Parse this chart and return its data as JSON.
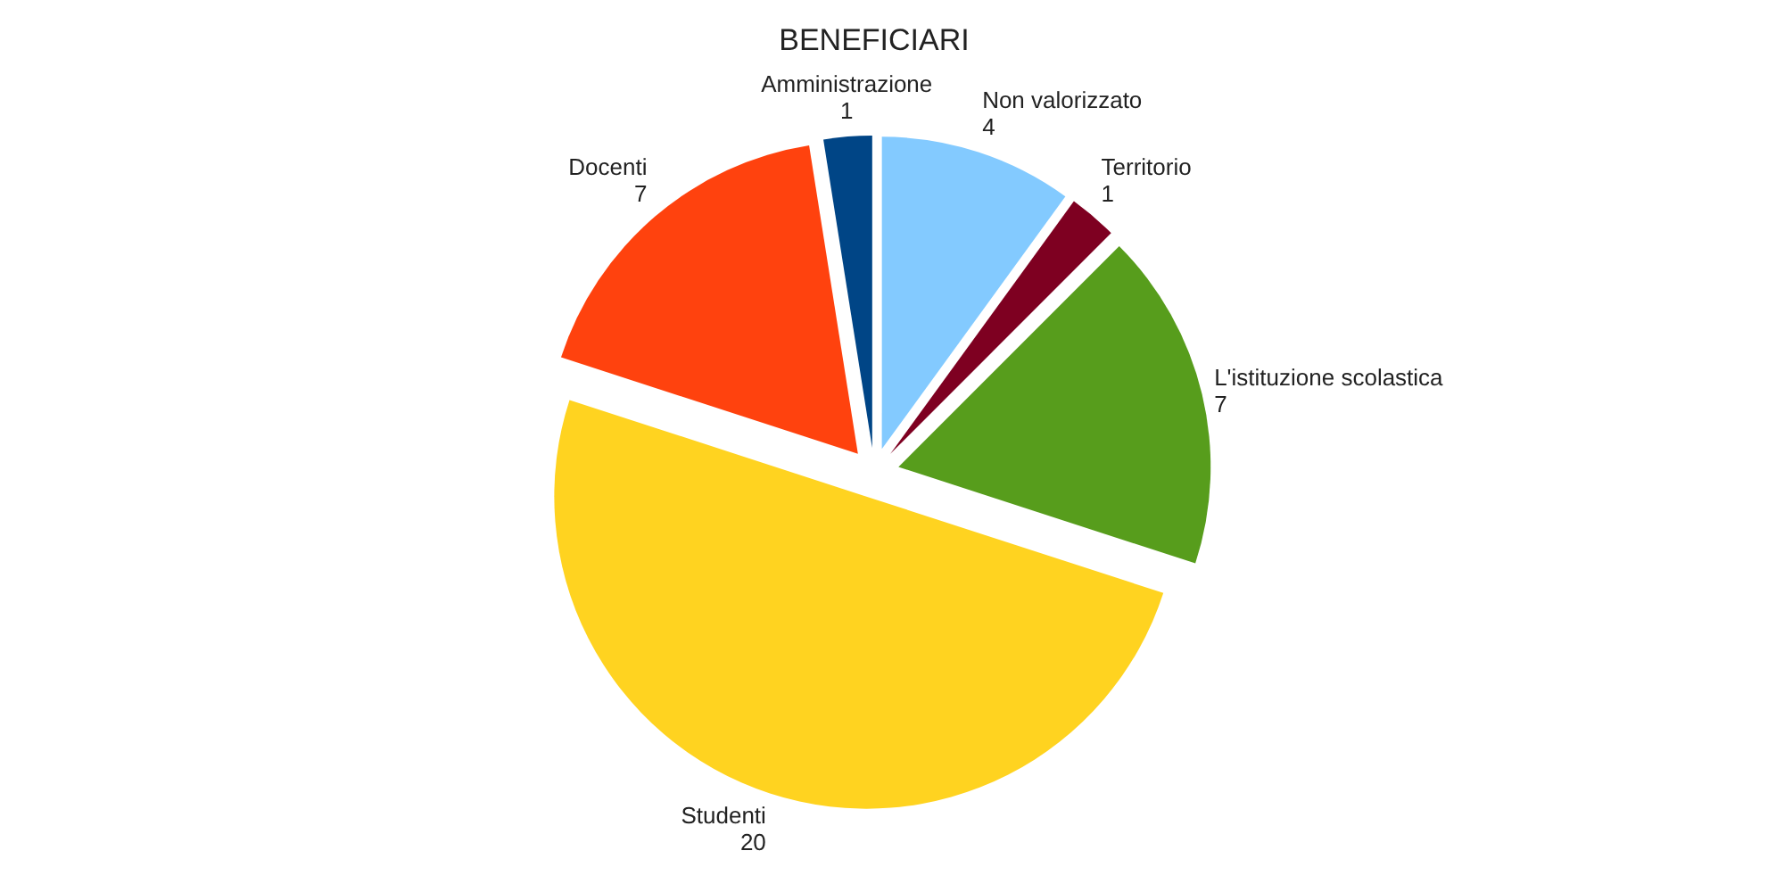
{
  "chart_data": {
    "type": "pie",
    "title": "BENEFICIARI",
    "categories": [
      "Non valorizzato",
      "Territorio",
      "L'istituzione scolastica",
      "Studenti",
      "Docenti",
      "Amministrazione"
    ],
    "values": [
      4,
      1,
      7,
      20,
      7,
      1
    ],
    "colors": [
      "#83caff",
      "#7e0021",
      "#579d1c",
      "#ffd320",
      "#ff420e",
      "#004586"
    ],
    "data_labels": true
  }
}
